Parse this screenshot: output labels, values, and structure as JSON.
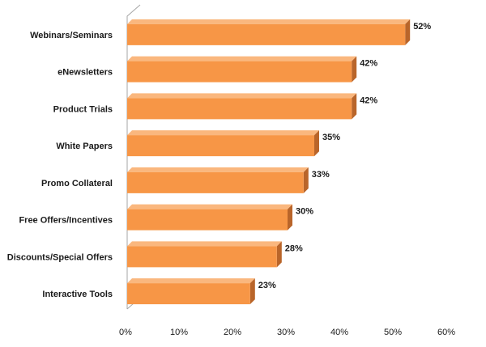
{
  "chart_data": {
    "type": "bar",
    "orientation": "horizontal",
    "categories": [
      "Webinars/Seminars",
      "eNewsletters",
      "Product Trials",
      "White Papers",
      "Promo Collateral",
      "Free Offers/Incentives",
      "Discounts/Special Offers",
      "Interactive Tools"
    ],
    "values": [
      52,
      42,
      42,
      35,
      33,
      30,
      28,
      23
    ],
    "value_labels": [
      "52%",
      "42%",
      "42%",
      "35%",
      "33%",
      "30%",
      "28%",
      "23%"
    ],
    "xlim": [
      0,
      60
    ],
    "x_ticks": [
      0,
      10,
      20,
      30,
      40,
      50,
      60
    ],
    "x_tick_labels": [
      "0%",
      "10%",
      "20%",
      "30%",
      "40%",
      "50%",
      "60%"
    ],
    "title": "",
    "xlabel": "",
    "ylabel": "",
    "grid": false,
    "legend": "none",
    "style": "3d",
    "colors": {
      "bar_front": "#F79646",
      "bar_top": "#FAB77E",
      "bar_side": "#B9652A",
      "wall_line": "#A6A6A6"
    }
  }
}
